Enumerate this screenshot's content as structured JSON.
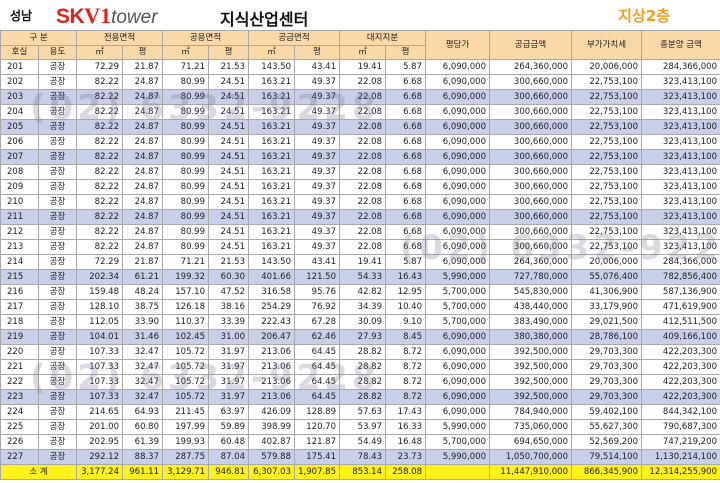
{
  "header": {
    "region": "성남",
    "brand_sk": "SK",
    "brand_v1": "V1",
    "brand_tower": "tower",
    "center_name": "지식산업센터",
    "floor": "지상2층"
  },
  "table": {
    "group_headers": [
      "구 분",
      "전용면적",
      "공용면적",
      "공급면적",
      "대지지분",
      "평당가",
      "공급금액",
      "부가가치세",
      "총분양 금액"
    ],
    "sub_headers": [
      "호실",
      "용도",
      "㎡",
      "평",
      "㎡",
      "평",
      "㎡",
      "평",
      "㎡",
      "평"
    ],
    "rows": [
      {
        "c": [
          "201",
          "공장",
          "72.29",
          "21.87",
          "71.21",
          "21.53",
          "143.50",
          "43.41",
          "19.41",
          "5.87",
          "6,090,000",
          "264,360,000",
          "20,006,000",
          "284,366,000"
        ],
        "hl": false
      },
      {
        "c": [
          "202",
          "공장",
          "82.22",
          "24.87",
          "80.99",
          "24.51",
          "163.21",
          "49.37",
          "22.08",
          "6.68",
          "6,090,000",
          "300,660,000",
          "22,753,100",
          "323,413,100"
        ],
        "hl": false
      },
      {
        "c": [
          "203",
          "공장",
          "82.22",
          "24.87",
          "80.99",
          "24.51",
          "163.21",
          "49.37",
          "22.08",
          "6.68",
          "6,090,000",
          "300,660,000",
          "22,753,100",
          "323,413,100"
        ],
        "hl": true
      },
      {
        "c": [
          "204",
          "공장",
          "82.22",
          "24.87",
          "80.99",
          "24.51",
          "163.21",
          "49.37",
          "22.08",
          "6.68",
          "6,090,000",
          "300,660,000",
          "22,753,100",
          "323,413,100"
        ],
        "hl": false
      },
      {
        "c": [
          "205",
          "공장",
          "82.22",
          "24.87",
          "80.99",
          "24.51",
          "163.21",
          "49.37",
          "22.08",
          "6.68",
          "6,090,000",
          "300,660,000",
          "22,753,100",
          "323,413,100"
        ],
        "hl": true
      },
      {
        "c": [
          "206",
          "공장",
          "82.22",
          "24.87",
          "80.99",
          "24.51",
          "163.21",
          "49.37",
          "22.08",
          "6.68",
          "6,090,000",
          "300,660,000",
          "22,753,100",
          "323,413,100"
        ],
        "hl": false
      },
      {
        "c": [
          "207",
          "공장",
          "82.22",
          "24.87",
          "80.99",
          "24.51",
          "163.21",
          "49.37",
          "22.08",
          "6.68",
          "6,090,000",
          "300,660,000",
          "22,753,100",
          "323,413,100"
        ],
        "hl": true
      },
      {
        "c": [
          "208",
          "공장",
          "82.22",
          "24.87",
          "80.99",
          "24.51",
          "163.21",
          "49.37",
          "22.08",
          "6.68",
          "6,090,000",
          "300,660,000",
          "22,753,100",
          "323,413,100"
        ],
        "hl": false
      },
      {
        "c": [
          "209",
          "공장",
          "82.22",
          "24.87",
          "80.99",
          "24.51",
          "163.21",
          "49.37",
          "22.08",
          "6.68",
          "6,090,000",
          "300,660,000",
          "22,753,100",
          "323,413,100"
        ],
        "hl": false
      },
      {
        "c": [
          "210",
          "공장",
          "82.22",
          "24.87",
          "80.99",
          "24.51",
          "163.21",
          "49.37",
          "22.08",
          "6.68",
          "6,090,000",
          "300,660,000",
          "22,753,100",
          "323,413,100"
        ],
        "hl": false
      },
      {
        "c": [
          "211",
          "공장",
          "82.22",
          "24.87",
          "80.99",
          "24.51",
          "163.21",
          "49.37",
          "22.08",
          "6.68",
          "6,090,000",
          "300,660,000",
          "22,753,100",
          "323,413,100"
        ],
        "hl": true
      },
      {
        "c": [
          "212",
          "공장",
          "82.22",
          "24.87",
          "80.99",
          "24.51",
          "163.21",
          "49.37",
          "22.08",
          "6.68",
          "6,090,000",
          "300,660,000",
          "22,753,100",
          "323,413,100"
        ],
        "hl": false
      },
      {
        "c": [
          "213",
          "공장",
          "82.22",
          "24.87",
          "80.99",
          "24.51",
          "163.21",
          "49.37",
          "22.08",
          "6.68",
          "6,090,000",
          "300,660,000",
          "22,753,100",
          "323,413,100"
        ],
        "hl": false
      },
      {
        "c": [
          "214",
          "공장",
          "72.29",
          "21.87",
          "71.21",
          "21.53",
          "143.50",
          "43.41",
          "19.41",
          "5.87",
          "6,090,000",
          "264,360,000",
          "20,006,000",
          "284,366,000"
        ],
        "hl": false
      },
      {
        "c": [
          "215",
          "공장",
          "202.34",
          "61.21",
          "199.32",
          "60.30",
          "401.66",
          "121.50",
          "54.33",
          "16.43",
          "5,990,000",
          "727,780,000",
          "55,076,400",
          "782,856,400"
        ],
        "hl": true
      },
      {
        "c": [
          "216",
          "공장",
          "159.48",
          "48.24",
          "157.10",
          "47.52",
          "316.58",
          "95.76",
          "42.82",
          "12.95",
          "5,700,000",
          "545,830,000",
          "41,306,900",
          "587,136,900"
        ],
        "hl": false
      },
      {
        "c": [
          "217",
          "공장",
          "128.10",
          "38.75",
          "126.18",
          "38.16",
          "254.29",
          "76.92",
          "34.39",
          "10.40",
          "5,700,000",
          "438,440,000",
          "33,179,900",
          "471,619,900"
        ],
        "hl": false
      },
      {
        "c": [
          "218",
          "공장",
          "112.05",
          "33.90",
          "110.37",
          "33.39",
          "222.43",
          "67.28",
          "30.09",
          "9.10",
          "5,700,000",
          "383,490,000",
          "29,021,500",
          "412,511,500"
        ],
        "hl": false
      },
      {
        "c": [
          "219",
          "공장",
          "104.01",
          "31.46",
          "102.45",
          "31.00",
          "206.47",
          "62.46",
          "27.93",
          "8.45",
          "6,090,000",
          "380,380,000",
          "28,786,100",
          "409,166,100"
        ],
        "hl": true
      },
      {
        "c": [
          "220",
          "공장",
          "107.33",
          "32.47",
          "105.72",
          "31.97",
          "213.06",
          "64.45",
          "28.82",
          "8.72",
          "6,090,000",
          "392,500,000",
          "29,703,300",
          "422,203,300"
        ],
        "hl": false
      },
      {
        "c": [
          "221",
          "공장",
          "107.33",
          "32.47",
          "105.72",
          "31.97",
          "213.06",
          "64.45",
          "28.82",
          "8.72",
          "6,090,000",
          "392,500,000",
          "29,703,300",
          "422,203,300"
        ],
        "hl": false
      },
      {
        "c": [
          "222",
          "공장",
          "107.33",
          "32.47",
          "105.72",
          "31.97",
          "213.06",
          "64.45",
          "28.82",
          "8.72",
          "6,090,000",
          "392,500,000",
          "29,703,300",
          "422,203,300"
        ],
        "hl": false
      },
      {
        "c": [
          "223",
          "공장",
          "107.33",
          "32.47",
          "105.72",
          "31.97",
          "213.06",
          "64.45",
          "28.82",
          "8.72",
          "6,090,000",
          "392,500,000",
          "29,703,300",
          "422,203,300"
        ],
        "hl": true
      },
      {
        "c": [
          "224",
          "공장",
          "214.65",
          "64.93",
          "211.45",
          "63.97",
          "426.09",
          "128.89",
          "57.63",
          "17.43",
          "6,090,000",
          "784,940,000",
          "59,402,100",
          "844,342,100"
        ],
        "hl": false
      },
      {
        "c": [
          "225",
          "공장",
          "201.00",
          "60.80",
          "197.99",
          "59.89",
          "398.99",
          "120.70",
          "53.97",
          "16.33",
          "5,990,000",
          "735,060,000",
          "55,627,300",
          "790,687,300"
        ],
        "hl": false
      },
      {
        "c": [
          "226",
          "공장",
          "202.95",
          "61.39",
          "199.93",
          "60.48",
          "402.87",
          "121.87",
          "54.49",
          "16.48",
          "5,700,000",
          "694,650,000",
          "52,569,200",
          "747,219,200"
        ],
        "hl": false
      },
      {
        "c": [
          "227",
          "공장",
          "292.12",
          "88.37",
          "287.75",
          "87.04",
          "579.88",
          "175.41",
          "78.43",
          "23.73",
          "5,990,000",
          "1,050,700,000",
          "79,514,100",
          "1,130,214,100"
        ],
        "hl": true
      }
    ],
    "total": {
      "label": "소 계",
      "values": [
        "3,177.24",
        "961.11",
        "3,129.71",
        "946.81",
        "6,307.03",
        "1,907.85",
        "853.14",
        "258.08",
        "",
        "11,447,910,000",
        "866,345,900",
        "12,314,255,900"
      ]
    }
  },
  "watermark": {
    "text1": "(02) 6332-9228",
    "text2": "(02) 6332-9228"
  }
}
